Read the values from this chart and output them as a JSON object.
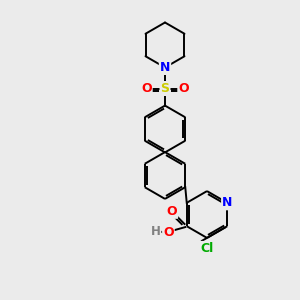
{
  "bg_color": "#ebebeb",
  "atom_colors": {
    "C": "#000000",
    "N": "#0000ff",
    "O": "#ff0000",
    "S": "#cccc00",
    "Cl": "#00aa00",
    "H": "#808080"
  },
  "bond_color": "#000000",
  "figsize": [
    3.0,
    3.0
  ],
  "dpi": 100
}
